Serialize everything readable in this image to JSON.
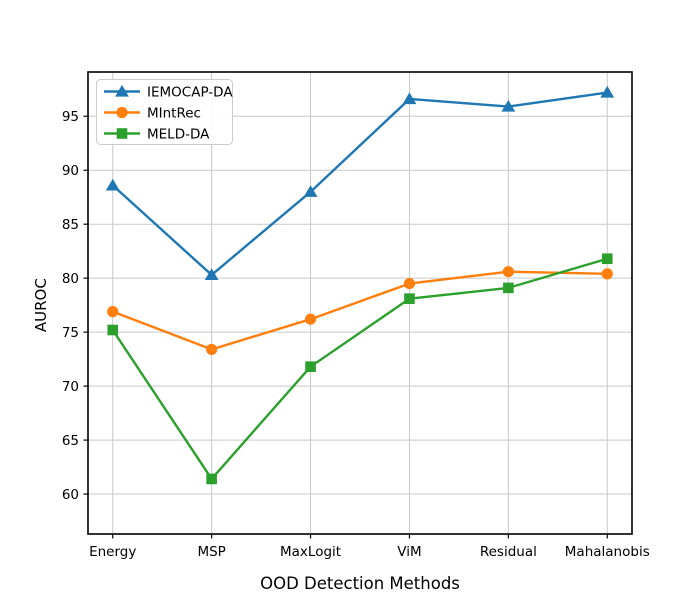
{
  "figure": {
    "background": "#ffffff",
    "border_color": "#000000",
    "grid_color": "#c9c9c9",
    "legend_border_color": "#cccccc",
    "legend_background": "#ffffff"
  },
  "chart_data": {
    "type": "line",
    "title": "",
    "xlabel": "OOD Detection Methods",
    "ylabel": "AUROC",
    "categories": [
      "Energy",
      "MSP",
      "MaxLogit",
      "ViM",
      "Residual",
      "Mahalanobis"
    ],
    "series": [
      {
        "name": "IEMOCAP-DA",
        "color": "#1f77b4",
        "marker": "triangle-up",
        "values": [
          88.6,
          80.3,
          88.0,
          96.6,
          95.9,
          97.2
        ]
      },
      {
        "name": "MIntRec",
        "color": "#ff7f0e",
        "marker": "circle",
        "values": [
          76.9,
          73.4,
          76.2,
          79.5,
          80.6,
          80.4
        ]
      },
      {
        "name": "MELD-DA",
        "color": "#2ca02c",
        "marker": "square",
        "values": [
          75.2,
          61.4,
          71.8,
          78.1,
          79.1,
          81.8
        ]
      }
    ],
    "ylim": [
      56.3,
      99.1
    ],
    "yticks": [
      60,
      65,
      70,
      75,
      80,
      85,
      90,
      95
    ],
    "grid": true,
    "legend_position": "upper-left"
  }
}
